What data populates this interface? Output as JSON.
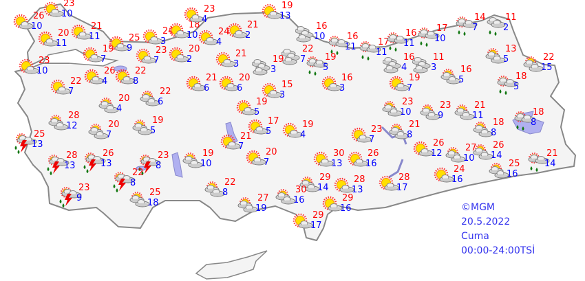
{
  "info": {
    "copyright": "©MGM",
    "date": "20.5.2022",
    "day": "Cuma",
    "period": "00:00-24:00TSİ"
  },
  "colors": {
    "max_temp": "#ff0000",
    "min_temp": "#0000ff",
    "land": "#f4f4f4",
    "border": "#888888",
    "water": "#b0b0f0",
    "info_text": "#3333ee"
  },
  "stations": [
    {
      "icon": "sun-cloud",
      "max": "26",
      "min": "10"
    },
    {
      "icon": "sun-cloud",
      "max": "23",
      "min": "10"
    },
    {
      "icon": "sun-cloud",
      "max": "20",
      "min": "11"
    },
    {
      "icon": "sun-cloud",
      "max": "21",
      "min": "11"
    },
    {
      "icon": "sun-cloud",
      "max": "19",
      "min": "7"
    },
    {
      "icon": "sun-cloud",
      "max": "25",
      "min": "9"
    },
    {
      "icon": "sun-cloud",
      "max": "24",
      "min": "3"
    },
    {
      "icon": "sun-cloud",
      "max": "18",
      "min": "10"
    },
    {
      "icon": "sun-cloud",
      "max": "23",
      "min": "4"
    },
    {
      "icon": "sun-cloud",
      "max": "24",
      "min": "4"
    },
    {
      "icon": "sun-cloud",
      "max": "21",
      "min": "2"
    },
    {
      "icon": "sun-cloud",
      "max": "19",
      "min": "13"
    },
    {
      "icon": "sun-cloud",
      "max": "23",
      "min": "7"
    },
    {
      "icon": "sun-cloud",
      "max": "20",
      "min": "2"
    },
    {
      "icon": "sun-cloud",
      "max": "21",
      "min": "3"
    },
    {
      "icon": "cloudy",
      "max": "19",
      "min": "3"
    },
    {
      "icon": "sun-cloud",
      "max": "23",
      "min": "10"
    },
    {
      "icon": "sun-cloud",
      "max": "22",
      "min": "7"
    },
    {
      "icon": "sun-cloud",
      "max": "26",
      "min": "4"
    },
    {
      "icon": "sun-cloud",
      "max": "22",
      "min": "8"
    },
    {
      "icon": "partly-cloudy",
      "max": "22",
      "min": "6"
    },
    {
      "icon": "partly-cloudy",
      "max": "20",
      "min": "4"
    },
    {
      "icon": "sun-cloud",
      "max": "21",
      "min": "6"
    },
    {
      "icon": "sun-cloud",
      "max": "20",
      "min": "6"
    },
    {
      "icon": "sun-cloud",
      "max": "15",
      "min": "3"
    },
    {
      "icon": "sun-cloud",
      "max": "19",
      "min": "5"
    },
    {
      "icon": "sun-cloud",
      "max": "17",
      "min": "5"
    },
    {
      "icon": "partly-cloudy",
      "max": "28",
      "min": "12"
    },
    {
      "icon": "partly-cloudy",
      "max": "20",
      "min": "7"
    },
    {
      "icon": "partly-cloudy",
      "max": "19",
      "min": "5"
    },
    {
      "icon": "sun-cloud",
      "max": "21",
      "min": "7"
    },
    {
      "icon": "thunderstorm",
      "max": "25",
      "min": "13"
    },
    {
      "icon": "thunderstorm",
      "max": "28",
      "min": "13"
    },
    {
      "icon": "thunderstorm",
      "max": "26",
      "min": "13"
    },
    {
      "icon": "thunderstorm",
      "max": "23",
      "min": "8"
    },
    {
      "icon": "thunderstorm",
      "max": "22",
      "min": "8"
    },
    {
      "icon": "thunderstorm",
      "max": "23",
      "min": "9"
    },
    {
      "icon": "partly-cloudy",
      "max": "25",
      "min": "18"
    },
    {
      "icon": "partly-cloudy",
      "max": "19",
      "min": "10"
    },
    {
      "icon": "sun-cloud",
      "max": "20",
      "min": "7"
    },
    {
      "icon": "partly-cloudy",
      "max": "22",
      "min": "8"
    },
    {
      "icon": "partly-cloudy",
      "max": "27",
      "min": "19"
    },
    {
      "icon": "sun-cloud",
      "max": "19",
      "min": "4"
    },
    {
      "icon": "cloudy",
      "max": "16",
      "min": "10"
    },
    {
      "icon": "cloudy",
      "max": "22",
      "min": "7"
    },
    {
      "icon": "rain",
      "max": "16",
      "min": "11"
    },
    {
      "icon": "rain",
      "max": "17",
      "min": "11"
    },
    {
      "icon": "rain",
      "max": "16",
      "min": "11"
    },
    {
      "icon": "rain",
      "max": "17",
      "min": "10"
    },
    {
      "icon": "rain",
      "max": "14",
      "min": "7"
    },
    {
      "icon": "cloudy-rain",
      "max": "11",
      "min": "2"
    },
    {
      "icon": "rain",
      "max": "19",
      "min": "5"
    },
    {
      "icon": "cloudy",
      "max": "16",
      "min": "4"
    },
    {
      "icon": "cloudy",
      "max": "11",
      "min": "3"
    },
    {
      "icon": "sun-cloud",
      "max": "16",
      "min": "3"
    },
    {
      "icon": "sun-cloud",
      "max": "19",
      "min": "7"
    },
    {
      "icon": "partly-cloudy",
      "max": "16",
      "min": "5"
    },
    {
      "icon": "partly-cloudy",
      "max": "13",
      "min": "5"
    },
    {
      "icon": "partly-cloudy",
      "max": "22",
      "min": "15"
    },
    {
      "icon": "rain",
      "max": "18",
      "min": "5"
    },
    {
      "icon": "partly-cloudy",
      "max": "23",
      "min": "10"
    },
    {
      "icon": "partly-cloudy",
      "max": "23",
      "min": "9"
    },
    {
      "icon": "partly-cloudy",
      "max": "21",
      "min": "11"
    },
    {
      "icon": "partly-cloudy",
      "max": "18",
      "min": "8"
    },
    {
      "icon": "rain",
      "max": "18",
      "min": "8"
    },
    {
      "icon": "partly-cloudy",
      "max": "21",
      "min": "8"
    },
    {
      "icon": "sun-cloud",
      "max": "23",
      "min": "7"
    },
    {
      "icon": "sun-cloud",
      "max": "30",
      "min": "13"
    },
    {
      "icon": "sun-cloud",
      "max": "26",
      "min": "16"
    },
    {
      "icon": "sun-cloud",
      "max": "26",
      "min": "12"
    },
    {
      "icon": "partly-cloudy",
      "max": "27",
      "min": "10"
    },
    {
      "icon": "partly-cloudy",
      "max": "26",
      "min": "14"
    },
    {
      "icon": "partly-cloudy",
      "max": "29",
      "min": "14"
    },
    {
      "icon": "sun-cloud",
      "max": "28",
      "min": "13"
    },
    {
      "icon": "sun-cloud",
      "max": "28",
      "min": "17"
    },
    {
      "icon": "sun-cloud",
      "max": "24",
      "min": "16"
    },
    {
      "icon": "partly-cloudy",
      "max": "25",
      "min": "16"
    },
    {
      "icon": "rain",
      "max": "21",
      "min": "14"
    },
    {
      "icon": "partly-cloudy",
      "max": "30",
      "min": "16"
    },
    {
      "icon": "sun-cloud",
      "max": "29",
      "min": "16"
    },
    {
      "icon": "sun-cloud",
      "max": "29",
      "min": "17"
    }
  ]
}
